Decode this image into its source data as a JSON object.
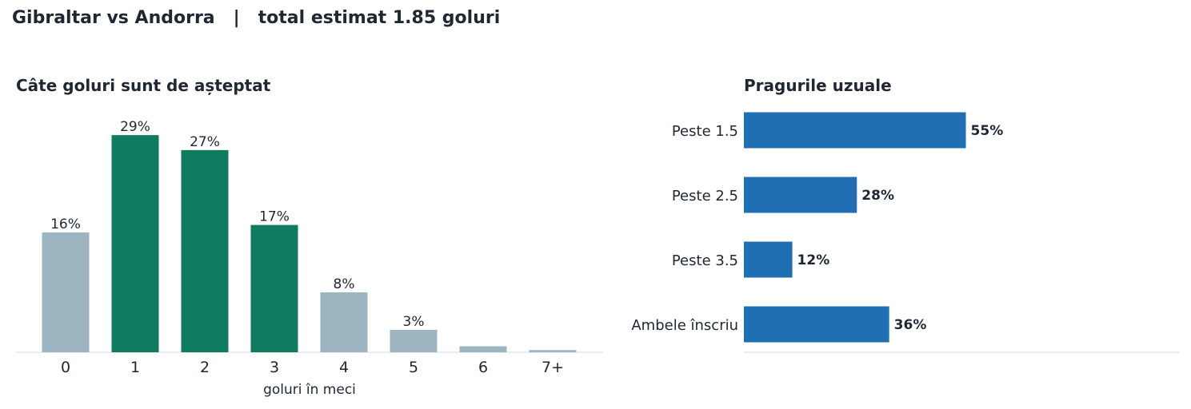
{
  "header": {
    "title": "Gibraltar vs Andorra   |   total estimat 1.85 goluri"
  },
  "colors": {
    "text": "#1f2733",
    "highlight": "#0f7b5f",
    "muted": "#9db5c1",
    "threshold": "#1f6fb2",
    "axis": "#dde2e6"
  },
  "chart_data": [
    {
      "type": "bar",
      "title": "Câte goluri sunt de așteptat",
      "xlabel": "goluri în meci",
      "ylabel": "",
      "categories": [
        "0",
        "1",
        "2",
        "3",
        "4",
        "5",
        "6",
        "7+"
      ],
      "values": [
        16,
        29,
        27,
        17,
        8,
        3,
        0.8,
        0.3
      ],
      "data_labels": [
        "16%",
        "29%",
        "27%",
        "17%",
        "8%",
        "3%",
        "",
        ""
      ],
      "highlighted": [
        false,
        true,
        true,
        true,
        false,
        false,
        false,
        false
      ],
      "ylim": [
        0,
        32
      ],
      "grid": false,
      "legend": "none"
    },
    {
      "type": "bar",
      "orientation": "horizontal",
      "title": "Pragurile uzuale",
      "categories": [
        "Peste 1.5",
        "Peste 2.5",
        "Peste 3.5",
        "Ambele înscriu"
      ],
      "values": [
        55,
        28,
        12,
        36
      ],
      "data_labels": [
        "55%",
        "28%",
        "12%",
        "36%"
      ],
      "xlim": [
        0,
        108
      ],
      "grid": false,
      "legend": "none"
    }
  ]
}
